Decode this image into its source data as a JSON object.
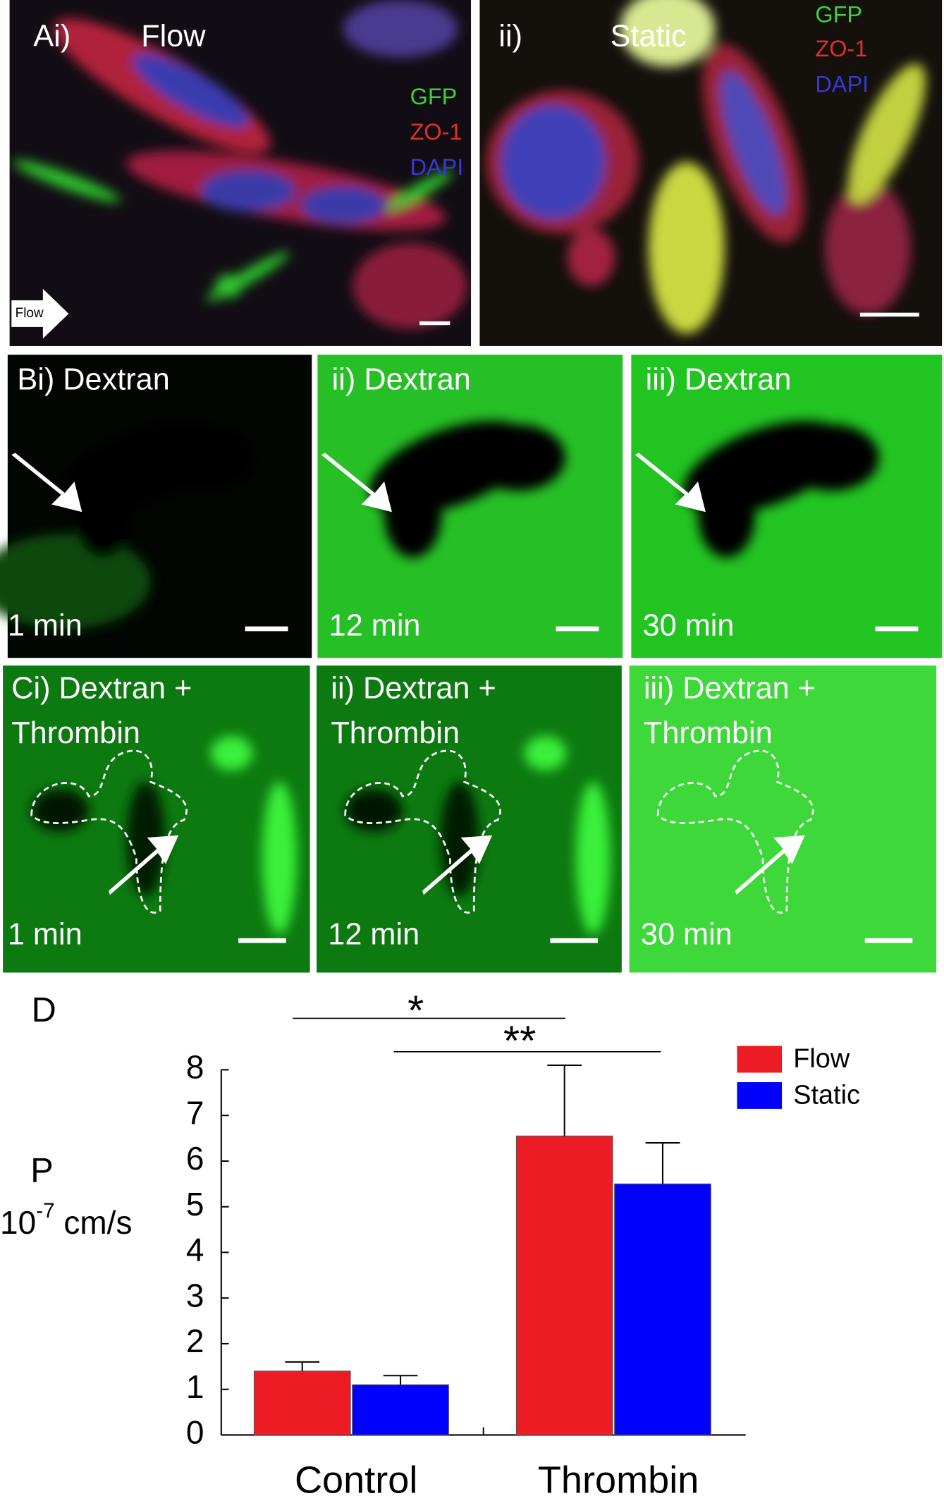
{
  "panels": {
    "a": [
      {
        "label": "Ai)",
        "title": "Flow",
        "legend": [
          "GFP",
          "ZO-1",
          "DAPI"
        ],
        "arrow_label": "Flow"
      },
      {
        "label": "ii)",
        "title": "Static",
        "legend": [
          "GFP",
          "ZO-1",
          "DAPI"
        ]
      }
    ],
    "b": [
      {
        "title": "Bi) Dextran",
        "time": "1 min"
      },
      {
        "title": "ii) Dextran",
        "time": "12 min"
      },
      {
        "title": "iii) Dextran",
        "time": "30 min"
      }
    ],
    "c": [
      {
        "title": [
          "Ci) Dextran +",
          "Thrombin"
        ],
        "time": "1 min"
      },
      {
        "title": [
          "ii) Dextran +",
          "Thrombin"
        ],
        "time": "12 min"
      },
      {
        "title": [
          "iii) Dextran +",
          "Thrombin"
        ],
        "time": "30 min"
      }
    ]
  },
  "chart_data": {
    "type": "bar",
    "panel_label": "D",
    "ylabel": "P",
    "yunit": {
      "base": "10",
      "exponent": "-7",
      "unit": " cm/s"
    },
    "categories": [
      "Control",
      "Thrombin"
    ],
    "series": [
      {
        "name": "Flow",
        "color": "#ed1c24",
        "values": [
          1.4,
          6.55
        ],
        "errors": [
          0.2,
          1.55
        ]
      },
      {
        "name": "Static",
        "color": "#0000ff",
        "values": [
          1.1,
          5.5
        ],
        "errors": [
          0.2,
          0.9
        ]
      }
    ],
    "ylim": [
      0,
      8
    ],
    "yticks": [
      0,
      1,
      2,
      3,
      4,
      5,
      6,
      7,
      8
    ],
    "annotations": [
      "*",
      "**"
    ],
    "legend": "upper right"
  }
}
